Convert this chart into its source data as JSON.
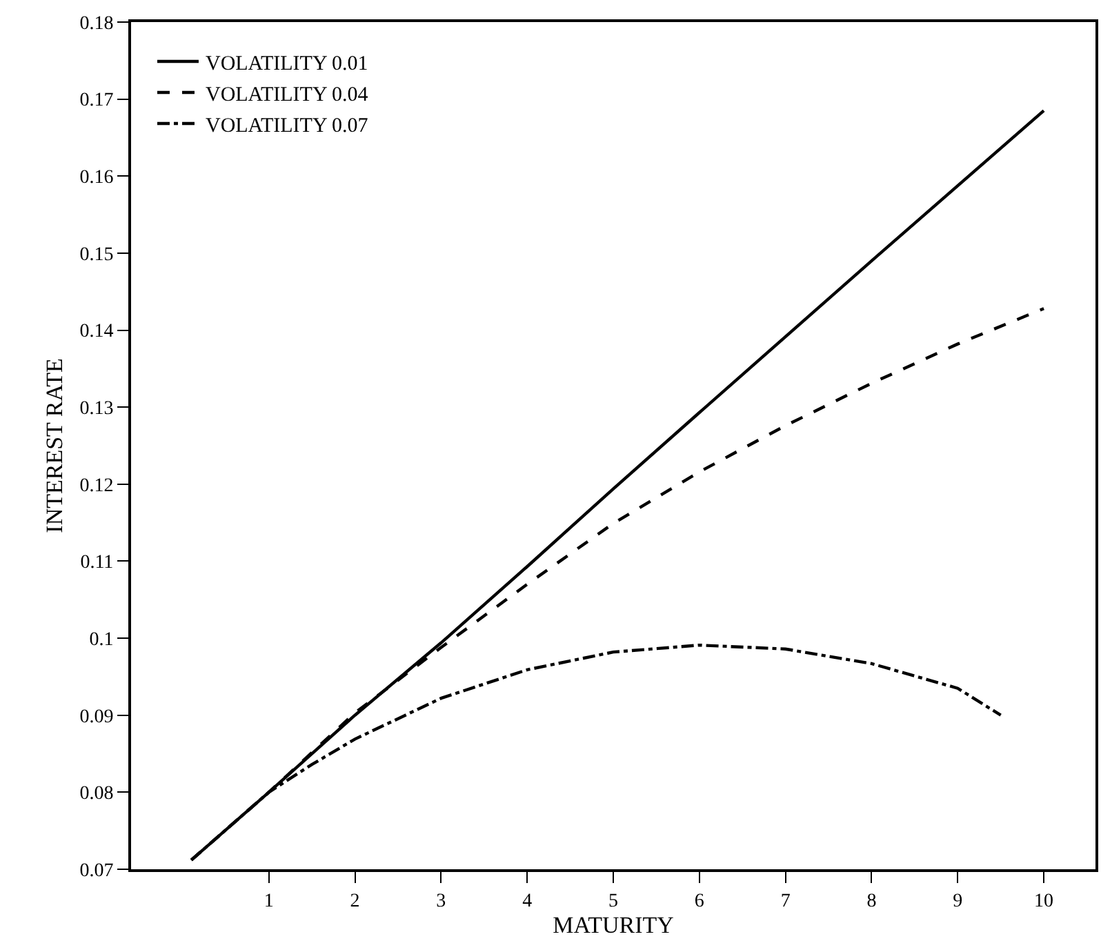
{
  "chart_data": {
    "type": "line",
    "xlabel": "MATURITY",
    "ylabel": "INTEREST RATE",
    "xlim": [
      -0.6,
      10.6
    ],
    "xticks": [
      1,
      2,
      3,
      4,
      5,
      6,
      7,
      8,
      9,
      10
    ],
    "ylim": [
      0.07,
      0.18
    ],
    "yticks": [
      0.07,
      0.08,
      0.09,
      {
        "value": 0.1,
        "label": "0.1"
      },
      0.11,
      0.12,
      0.13,
      0.14,
      0.15,
      0.16,
      0.17,
      0.18
    ],
    "grid": false,
    "legend": "top left",
    "marker": "none",
    "series": [
      {
        "name": "VOLATILITY 0.01",
        "color": "#000000",
        "line_style": "solid",
        "x": [
          0.1,
          1,
          2,
          3,
          4,
          5,
          6,
          8,
          10
        ],
        "values": [
          0.0712,
          0.08,
          0.09,
          0.0994,
          0.1093,
          0.1194,
          0.1293,
          0.149,
          0.1685
        ]
      },
      {
        "name": "VOLATILITY 0.04",
        "color": "#000000",
        "line_style": "dashed",
        "x": [
          0.1,
          1,
          2,
          3,
          4,
          5,
          6,
          7,
          8,
          9,
          10
        ],
        "values": [
          0.0712,
          0.08,
          0.0903,
          0.0988,
          0.107,
          0.1149,
          0.1216,
          0.1276,
          0.1331,
          0.1382,
          0.1428
        ]
      },
      {
        "name": "VOLATILITY 0.07",
        "color": "#000000",
        "line_style": "dashdot",
        "x": [
          0.1,
          1,
          1.5,
          2,
          3,
          4,
          5,
          6,
          7,
          8,
          9,
          9.5
        ],
        "values": [
          0.0712,
          0.08,
          0.0836,
          0.0869,
          0.0922,
          0.0959,
          0.0982,
          0.0991,
          0.0986,
          0.0967,
          0.0935,
          0.09
        ]
      }
    ]
  }
}
